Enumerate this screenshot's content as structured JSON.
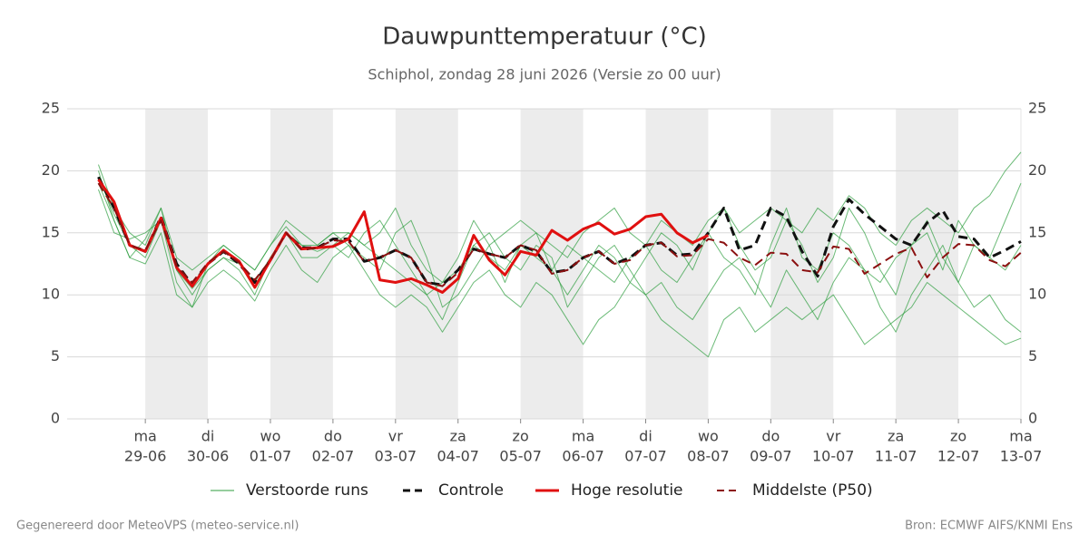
{
  "chart_data": {
    "type": "line",
    "title": "Dauwpunttemperatuur (°C)",
    "subtitle": "Schiphol, zondag 28 juni 2026 (Versie zo 00 uur)",
    "footer_left": "Gegenereerd door MeteoVPS (meteo-service.nl)",
    "footer_right": "Bron: ECMWF AIFS/KNMI Ens",
    "xlim": [
      -1.25,
      14
    ],
    "xticks": [
      {
        "value": 0,
        "label": "ma",
        "date": "29-06"
      },
      {
        "value": 1,
        "label": "di",
        "date": "30-06"
      },
      {
        "value": 2,
        "label": "wo",
        "date": "01-07"
      },
      {
        "value": 3,
        "label": "do",
        "date": "02-07"
      },
      {
        "value": 4,
        "label": "vr",
        "date": "03-07"
      },
      {
        "value": 5,
        "label": "za",
        "date": "04-07"
      },
      {
        "value": 6,
        "label": "zo",
        "date": "05-07"
      },
      {
        "value": 7,
        "label": "ma",
        "date": "06-07"
      },
      {
        "value": 8,
        "label": "di",
        "date": "07-07"
      },
      {
        "value": 9,
        "label": "wo",
        "date": "08-07"
      },
      {
        "value": 10,
        "label": "do",
        "date": "09-07"
      },
      {
        "value": 11,
        "label": "vr",
        "date": "10-07"
      },
      {
        "value": 12,
        "label": "za",
        "date": "11-07"
      },
      {
        "value": 13,
        "label": "zo",
        "date": "12-07"
      },
      {
        "value": 14,
        "label": "ma",
        "date": "13-07"
      }
    ],
    "ylim": [
      0,
      25
    ],
    "yticks": [
      0,
      5,
      10,
      15,
      20,
      25
    ],
    "grid": true,
    "x": [
      -0.75,
      -0.5,
      -0.25,
      0,
      0.25,
      0.5,
      0.75,
      1,
      1.25,
      1.5,
      1.75,
      2,
      2.25,
      2.5,
      2.75,
      3,
      3.25,
      3.5,
      3.75,
      4,
      4.25,
      4.5,
      4.75,
      5,
      5.25,
      5.5,
      5.75,
      6,
      6.25,
      6.5,
      6.75,
      7,
      7.25,
      7.5,
      7.75,
      8,
      8.25,
      8.5,
      8.75,
      9,
      9.25,
      9.5,
      9.75,
      10,
      10.25,
      10.5,
      10.75,
      11,
      11.25,
      11.5,
      11.75,
      12,
      12.25,
      12.5,
      12.75,
      13,
      13.25,
      13.5,
      13.75,
      14
    ],
    "ensemble": {
      "name": "Verstoorde runs",
      "color": "#2e9e3e",
      "runs": [
        [
          20,
          16,
          13,
          14.5,
          17,
          12,
          10,
          12,
          13,
          12,
          10,
          13,
          15,
          14,
          14,
          15,
          14,
          13,
          12,
          15,
          16,
          13,
          9,
          10,
          12,
          14,
          11,
          14,
          15,
          12,
          10,
          12,
          14,
          13,
          11,
          13,
          15,
          14,
          12,
          15,
          17,
          14,
          12,
          13,
          16,
          14,
          11,
          13,
          17,
          15,
          12,
          10,
          14,
          16,
          13,
          11,
          14,
          13,
          16,
          19
        ],
        [
          18.5,
          15,
          14.5,
          15,
          16,
          11,
          9,
          12.5,
          14,
          13,
          12,
          14,
          15.5,
          14,
          13.5,
          14,
          13,
          15,
          16,
          14,
          12,
          10,
          8,
          11,
          14,
          15,
          13,
          12,
          14,
          13,
          9,
          11,
          13,
          14,
          12,
          10,
          11,
          9,
          8,
          10,
          12,
          13,
          11,
          9,
          12,
          10,
          8,
          11,
          13,
          12,
          9,
          7,
          10,
          12,
          14,
          11,
          9,
          10,
          8,
          7
        ],
        [
          20.5,
          17,
          15,
          14,
          17,
          13,
          12,
          13,
          14,
          13,
          12,
          14,
          16,
          15,
          14,
          15,
          15,
          14,
          15,
          17,
          14,
          12,
          11,
          13,
          16,
          14,
          15,
          16,
          15,
          14,
          13,
          15,
          16,
          17,
          15,
          14,
          16,
          15,
          14,
          16,
          17,
          15,
          16,
          17,
          16,
          15,
          17,
          16,
          18,
          17,
          15,
          14,
          16,
          17,
          16,
          15,
          17,
          18,
          20,
          21.5
        ],
        [
          19,
          16,
          13,
          12.5,
          15,
          10,
          9,
          11,
          12,
          11,
          9.5,
          12,
          14,
          12,
          11,
          13,
          14,
          12,
          10,
          9,
          10,
          9,
          7,
          9,
          11,
          12,
          10,
          9,
          11,
          10,
          8,
          6,
          8,
          9,
          11,
          10,
          8,
          7,
          6,
          5,
          8,
          9,
          7,
          8,
          9,
          8,
          9,
          10,
          8,
          6,
          7,
          8,
          9,
          11,
          10,
          9,
          8,
          7,
          6,
          6.5
        ],
        [
          19.5,
          16.5,
          14,
          13,
          16,
          12,
          10.5,
          12,
          13,
          12.5,
          11,
          13,
          15,
          13,
          13,
          14,
          15,
          14,
          13,
          12,
          11,
          10,
          11,
          12,
          14,
          13,
          12,
          14,
          13,
          12,
          14,
          13,
          12,
          11,
          13,
          14,
          12,
          11,
          13,
          15,
          13,
          12,
          10,
          14,
          17,
          13,
          12,
          15,
          14,
          12,
          11,
          13,
          14,
          15,
          12,
          16,
          14,
          13,
          12,
          14
        ]
      ]
    },
    "series": [
      {
        "name": "Controle",
        "color": "#111111",
        "dashed": true,
        "width": 3,
        "values": [
          19.5,
          17,
          14,
          13.5,
          16.3,
          12.5,
          10.8,
          12.5,
          13.5,
          12.5,
          11,
          12.8,
          15,
          13.8,
          13.8,
          14.5,
          14.5,
          12.7,
          13,
          13.6,
          13,
          11,
          10.8,
          12,
          13.7,
          13.3,
          13,
          14,
          13.5,
          11.8,
          12,
          13,
          13.5,
          12.5,
          13,
          14,
          14.2,
          13.2,
          13.3,
          15,
          17,
          13.6,
          14,
          17,
          16.3,
          13.5,
          11.5,
          15.5,
          17.7,
          16.5,
          15.5,
          14.5,
          14,
          15.8,
          16.8,
          14.7,
          14.5,
          13,
          13.6,
          14.3
        ]
      },
      {
        "name": "Hoge resolutie",
        "color": "#e01010",
        "dashed": false,
        "width": 3,
        "values": [
          19.3,
          17.5,
          14,
          13.5,
          16.2,
          12.2,
          10.7,
          12.5,
          13.6,
          12.7,
          10.6,
          12.8,
          15,
          13.7,
          13.8,
          13.9,
          14.5,
          16.7,
          11.2,
          11,
          11.3,
          10.8,
          10.2,
          11.3,
          14.8,
          12.8,
          11.6,
          13.5,
          13.2,
          15.2,
          14.4,
          15.3,
          15.8,
          14.9,
          15.3,
          16.3,
          16.5,
          15,
          14.2,
          14.8,
          null,
          null,
          null,
          null,
          null,
          null,
          null,
          null,
          null,
          null,
          null,
          null,
          null,
          null,
          null,
          null,
          null,
          null,
          null,
          null
        ]
      },
      {
        "name": "Middelste (P50)",
        "color": "#8b1010",
        "dashed": true,
        "width": 2,
        "values": [
          19,
          17,
          14,
          13.6,
          16,
          12.3,
          11,
          12.6,
          13.5,
          12.6,
          11.2,
          12.8,
          15,
          13.6,
          13.8,
          14.4,
          14.3,
          12.7,
          13,
          13.6,
          13,
          11,
          10.7,
          11.8,
          13.7,
          13.3,
          13,
          14,
          13.6,
          11.7,
          12,
          13,
          13.5,
          12.5,
          12.8,
          14,
          14.2,
          13.1,
          13.2,
          14.5,
          14.2,
          13,
          12.4,
          13.4,
          13.3,
          12,
          11.8,
          13.9,
          13.7,
          11.7,
          12.5,
          13.3,
          13.8,
          11.4,
          13,
          14.1,
          14,
          12.8,
          12.3,
          13.4
        ]
      }
    ]
  }
}
